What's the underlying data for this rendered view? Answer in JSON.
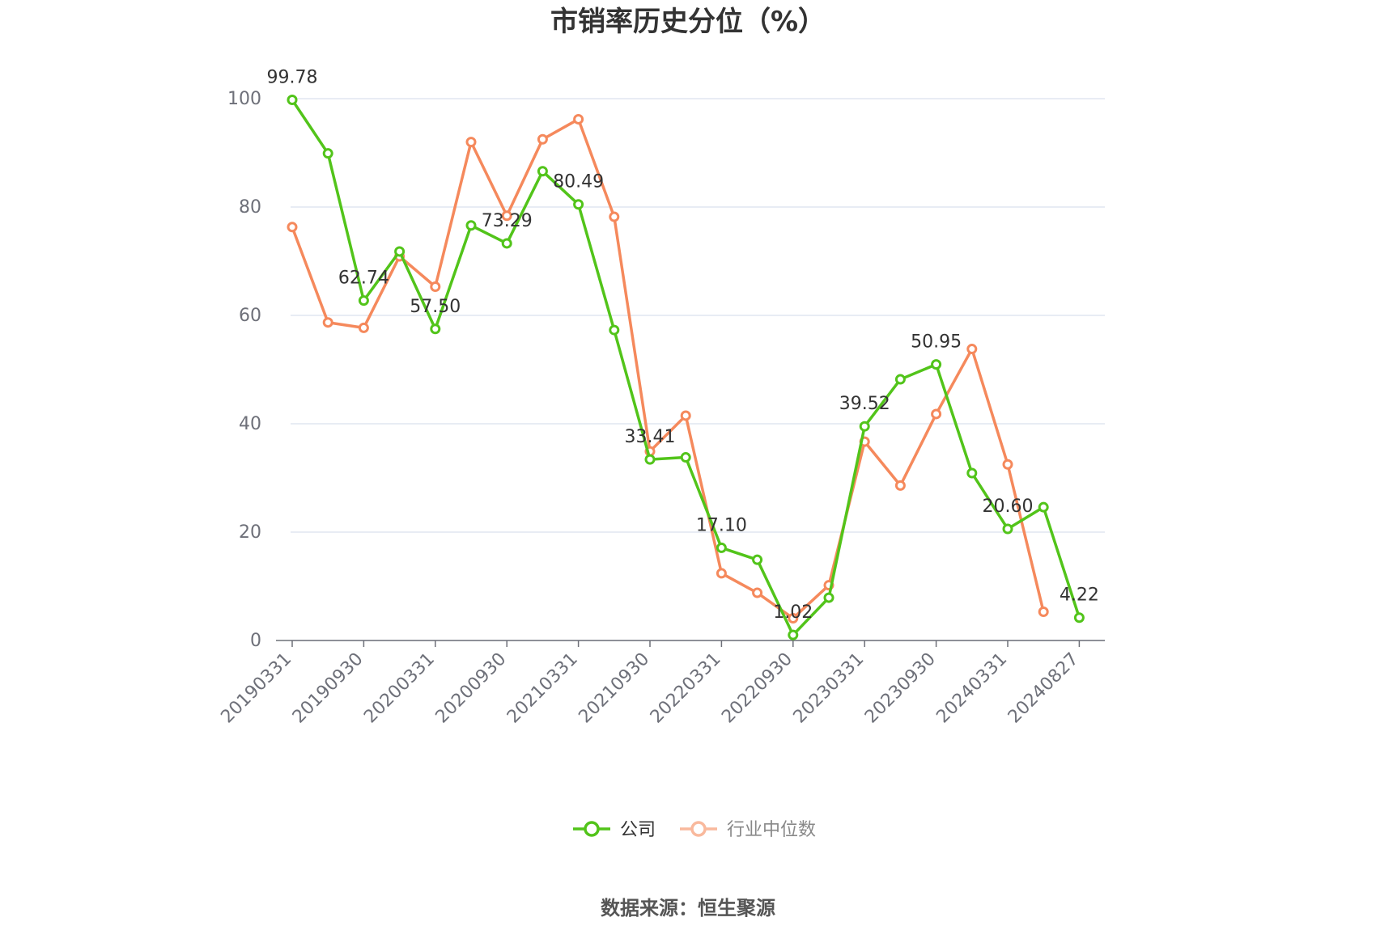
{
  "chart_data": {
    "type": "line",
    "title": "市销率历史分位（%）",
    "ylim": [
      0,
      100
    ],
    "yticks": [
      0,
      20,
      40,
      60,
      80,
      100
    ],
    "grid": true,
    "legend_position": "bottom-center",
    "x": [
      "20190331",
      "20190630",
      "20190930",
      "20191231",
      "20200331",
      "20200630",
      "20200930",
      "20201231",
      "20210331",
      "20210630",
      "20210930",
      "20211231",
      "20220331",
      "20220630",
      "20220930",
      "20221231",
      "20230331",
      "20230630",
      "20230930",
      "20231231",
      "20240331",
      "20240630",
      "20240827"
    ],
    "x_tick_labels": [
      "20190331",
      "20190930",
      "20200331",
      "20200930",
      "20210331",
      "20210930",
      "20220331",
      "20220930",
      "20230331",
      "20230930",
      "20240331",
      "20240827"
    ],
    "series": [
      {
        "name": "公司",
        "color": "#52c41a",
        "values": [
          99.78,
          89.9,
          62.74,
          71.8,
          57.5,
          76.6,
          73.29,
          86.6,
          80.49,
          57.3,
          33.41,
          33.8,
          17.1,
          14.9,
          1.02,
          7.9,
          39.52,
          48.2,
          50.95,
          30.9,
          20.6,
          24.6,
          4.22
        ],
        "labels": {
          "0": "99.78",
          "2": "62.74",
          "4": "57.50",
          "6": "73.29",
          "8": "80.49",
          "10": "33.41",
          "12": "17.10",
          "14": "1.02",
          "16": "39.52",
          "18": "50.95",
          "20": "20.60",
          "22": "4.22"
        }
      },
      {
        "name": "行业中位数",
        "color": "#f5895c",
        "values": [
          76.3,
          58.7,
          57.7,
          70.9,
          65.3,
          92.0,
          78.4,
          92.5,
          96.2,
          78.2,
          34.9,
          41.5,
          12.4,
          8.8,
          4.1,
          10.2,
          36.7,
          28.6,
          41.8,
          53.8,
          32.5,
          5.3,
          null
        ]
      }
    ]
  },
  "source": "数据来源：恒生聚源"
}
